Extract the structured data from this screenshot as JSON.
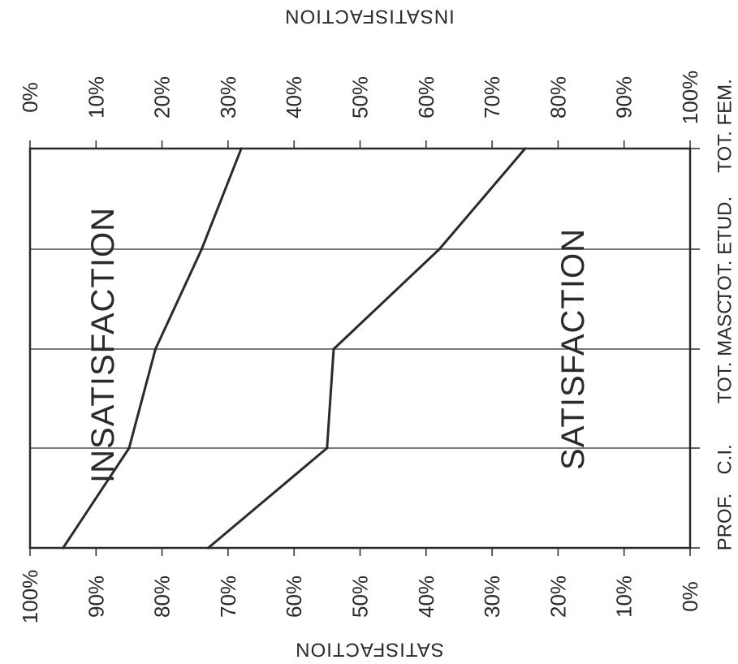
{
  "chart_data": {
    "type": "line",
    "orientation": "rotated-90",
    "categories": [
      "PROF.",
      "C.I.",
      "TOT. MASC.",
      "TOT. ETUD.",
      "TOT. FEM."
    ],
    "series": [
      {
        "name": "INSATISFACTION",
        "values": [
          95,
          85,
          81,
          74,
          68
        ],
        "color": "#2a2a2a"
      },
      {
        "name": "SATISFACTION",
        "values": [
          73,
          55,
          54,
          38,
          25
        ],
        "color": "#2a2a2a"
      }
    ],
    "top_axis": {
      "title": "INSATISFACTION",
      "ticks": [
        "0%",
        "10%",
        "20%",
        "30%",
        "40%",
        "50%",
        "60%",
        "70%",
        "80%",
        "90%",
        "100%"
      ]
    },
    "bottom_axis": {
      "title": "SATISFACTION",
      "ticks": [
        "100%",
        "90%",
        "80%",
        "70%",
        "60%",
        "50%",
        "40%",
        "30%",
        "20%",
        "10%",
        "0%"
      ]
    },
    "region_labels": {
      "upper": "INSATISFACTION",
      "lower": "SATISFACTION"
    },
    "ylim": [
      0,
      100
    ],
    "grid": true
  }
}
